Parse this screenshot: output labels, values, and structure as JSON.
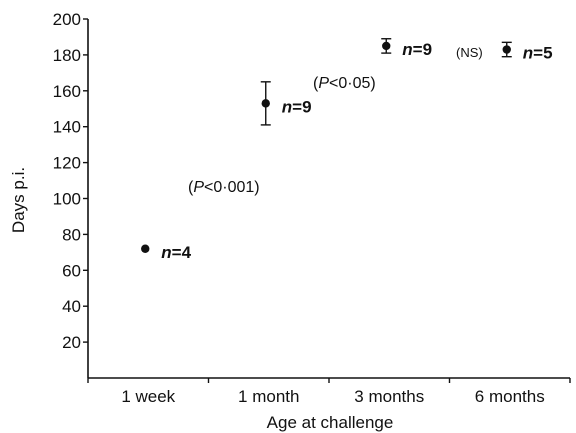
{
  "chart_data": {
    "type": "scatter",
    "xlabel": "Age at challenge",
    "ylabel": "Days p.i.",
    "ylim": [
      0,
      200
    ],
    "yticks": [
      20,
      40,
      60,
      80,
      100,
      120,
      140,
      160,
      180,
      200
    ],
    "categories": [
      "1 week",
      "1 month",
      "3 months",
      "6 months"
    ],
    "points": [
      {
        "category": "1 week",
        "value": 72,
        "error": 0,
        "n_prefix": "n",
        "n_value": "=4"
      },
      {
        "category": "1 month",
        "value": 153,
        "error": 12,
        "n_prefix": "n",
        "n_value": "=9"
      },
      {
        "category": "3 months",
        "value": 185,
        "error": 4,
        "n_prefix": "n",
        "n_value": "=9"
      },
      {
        "category": "6 months",
        "value": 183,
        "error": 4,
        "n_prefix": "n",
        "n_value": "=5"
      }
    ],
    "annotations": [
      {
        "between": [
          "1 week",
          "1 month"
        ],
        "open": "(",
        "p": "P",
        "rest": "<0·001)"
      },
      {
        "between": [
          "1 month",
          "3 months"
        ],
        "open": "(",
        "p": "P",
        "rest": "<0·05)"
      },
      {
        "between": [
          "3 months",
          "6 months"
        ],
        "text": "(NS)"
      }
    ],
    "grid": false,
    "colors": {
      "marker": "#111111",
      "axis": "#111111"
    }
  }
}
